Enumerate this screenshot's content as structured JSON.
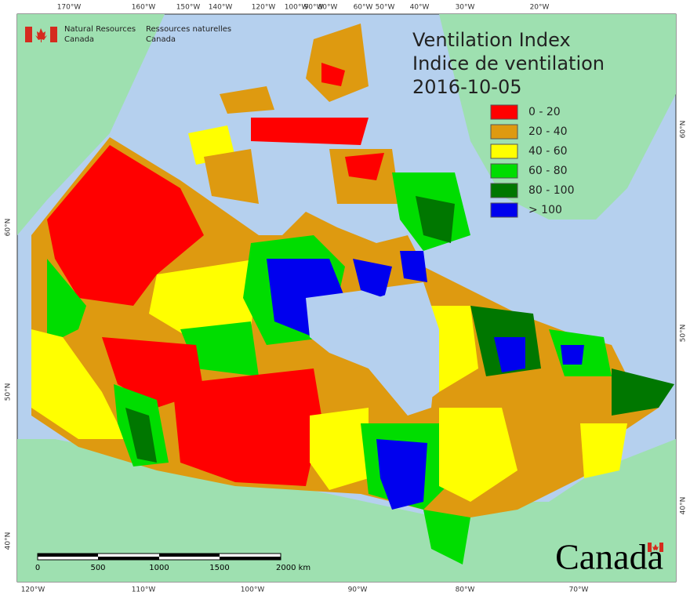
{
  "header": {
    "org_en_1": "Natural Resources",
    "org_en_2": "Canada",
    "org_fr_1": "Ressources naturelles",
    "org_fr_2": "Canada"
  },
  "title": {
    "line1": "Ventilation Index",
    "line2": "Indice de ventilation",
    "date": "2016-10-05"
  },
  "legend": [
    {
      "label": "0 - 20",
      "color": "#ff0000"
    },
    {
      "label": "20 - 40",
      "color": "#de9a10"
    },
    {
      "label": "40 - 60",
      "color": "#ffff00"
    },
    {
      "label": "60 - 80",
      "color": "#00dd00"
    },
    {
      "label": "80 - 100",
      "color": "#007700"
    },
    {
      "label": "> 100",
      "color": "#0000ee"
    }
  ],
  "graticule": {
    "top": [
      "170°W",
      "160°W",
      "150°W",
      "140°W",
      "120°W",
      "100°W",
      "90°W",
      "80°W",
      "60°W",
      "50°W",
      "40°W",
      "30°W",
      "20°W"
    ],
    "bottom": [
      "120°W",
      "110°W",
      "100°W",
      "90°W",
      "80°W",
      "70°W"
    ],
    "left": [
      "60°N",
      "50°N",
      "40°N"
    ],
    "right": [
      "60°N",
      "50°N",
      "40°N"
    ]
  },
  "scale_bar": {
    "labels": [
      "0",
      "500",
      "1000",
      "1500",
      "2000 km"
    ]
  },
  "wordmark": "Canada"
}
